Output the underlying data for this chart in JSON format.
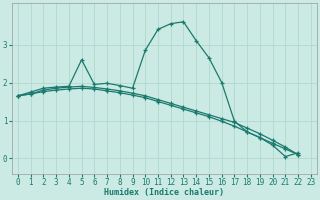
{
  "xlabel": "Humidex (Indice chaleur)",
  "background_color": "#cceae4",
  "line_color": "#1a7a6e",
  "grid_color": "#b0d8d0",
  "xlim": [
    -0.5,
    23.5
  ],
  "ylim": [
    -0.4,
    4.1
  ],
  "yticks": [
    0,
    1,
    2,
    3
  ],
  "xticks": [
    0,
    1,
    2,
    3,
    4,
    5,
    6,
    7,
    8,
    9,
    10,
    11,
    12,
    13,
    14,
    15,
    16,
    17,
    18,
    19,
    20,
    21,
    22,
    23
  ],
  "series": [
    {
      "y": [
        1.65,
        1.75,
        1.85,
        1.88,
        1.9,
        2.6,
        1.95,
        1.98,
        1.92,
        1.85,
        2.85,
        3.4,
        3.55,
        3.6,
        3.1,
        2.65,
        2.0,
        0.98,
        0.7,
        0.55,
        0.35,
        0.05,
        0.15,
        null
      ],
      "marker": true
    },
    {
      "y": [
        1.65,
        1.7,
        1.8,
        1.85,
        1.88,
        1.9,
        1.87,
        1.83,
        1.78,
        1.72,
        1.65,
        1.55,
        1.45,
        1.35,
        1.25,
        1.15,
        1.05,
        0.95,
        0.8,
        0.65,
        0.48,
        0.3,
        0.1,
        null
      ],
      "marker": true
    },
    {
      "y": [
        1.65,
        1.7,
        1.76,
        1.8,
        1.83,
        1.85,
        1.83,
        1.78,
        1.73,
        1.67,
        1.6,
        1.5,
        1.4,
        1.3,
        1.2,
        1.1,
        0.98,
        0.85,
        0.7,
        0.55,
        0.4,
        0.25,
        0.1,
        null
      ],
      "marker": true
    }
  ]
}
